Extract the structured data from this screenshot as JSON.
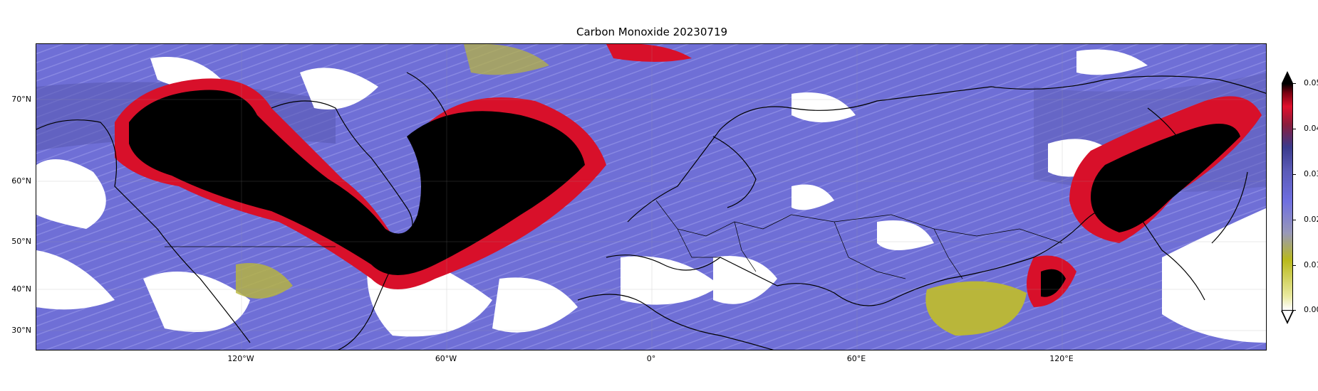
{
  "title": "Carbon Monoxide 20230719",
  "map": {
    "projection": "plate-carree",
    "extent_lon": [
      -180,
      180
    ],
    "extent_lat": [
      25,
      80
    ],
    "lat_labels": [
      "70°N",
      "60°N",
      "50°N",
      "40°N",
      "30°N"
    ],
    "lon_labels": [
      "120°W",
      "60°W",
      "0°",
      "60°E",
      "120°E"
    ],
    "features": [
      "coastlines",
      "country-borders",
      "gridlines"
    ]
  },
  "colorbar": {
    "ticks": [
      "0.00",
      "0.01",
      "0.02",
      "0.03",
      "0.04",
      "0.05"
    ],
    "range": [
      0.0,
      0.05
    ],
    "extend": "both",
    "colors": {
      "low": "#ffffff",
      "yellow": "#b9b91c",
      "blue": "#6f6fe0",
      "navy": "#3a3a8c",
      "red": "#e0102c",
      "high": "#000000"
    }
  }
}
